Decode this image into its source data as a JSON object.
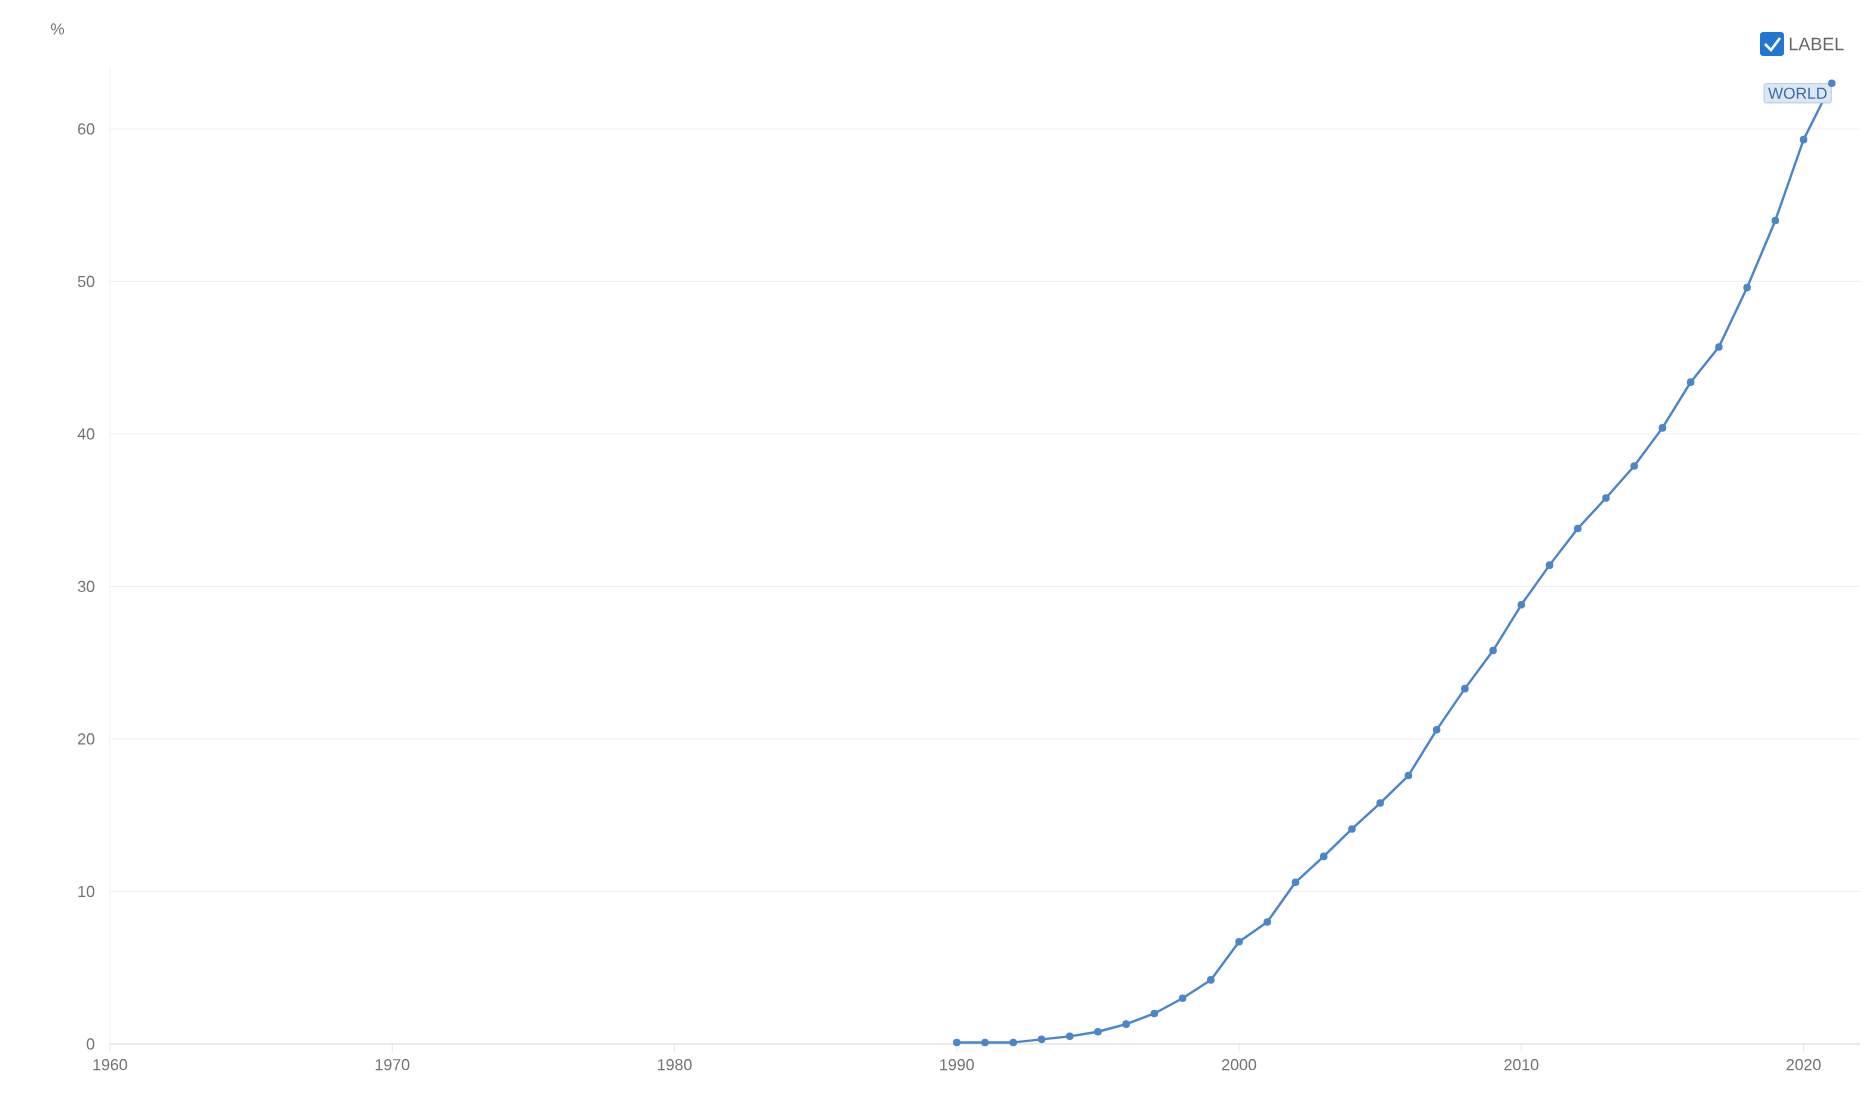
{
  "chart_data": {
    "type": "line",
    "ylabel": "%",
    "x": [
      1990,
      1991,
      1992,
      1993,
      1994,
      1995,
      1996,
      1997,
      1998,
      1999,
      2000,
      2001,
      2002,
      2003,
      2004,
      2005,
      2006,
      2007,
      2008,
      2009,
      2010,
      2011,
      2012,
      2013,
      2014,
      2015,
      2016,
      2017,
      2018,
      2019,
      2020,
      2021
    ],
    "series": [
      {
        "name": "WORLD",
        "color": "#4a86c8",
        "values": [
          0.1,
          0.1,
          0.1,
          0.3,
          0.5,
          0.8,
          1.3,
          2.0,
          3.0,
          4.2,
          6.7,
          8.0,
          10.6,
          12.3,
          14.1,
          15.8,
          17.6,
          20.6,
          23.3,
          25.8,
          28.8,
          31.4,
          33.8,
          35.8,
          37.9,
          40.4,
          43.4,
          45.7,
          49.6,
          54.0,
          59.3,
          63.0
        ]
      }
    ],
    "xlim": [
      1960,
      2022
    ],
    "ylim": [
      0,
      64
    ],
    "xticks": [
      1960,
      1970,
      1980,
      1990,
      2000,
      2010,
      2020
    ],
    "yticks": [
      0,
      10,
      20,
      30,
      40,
      50,
      60
    ],
    "grid": "y",
    "marker": "circle",
    "line_style": "solid",
    "annotations": [
      "LABEL"
    ]
  }
}
